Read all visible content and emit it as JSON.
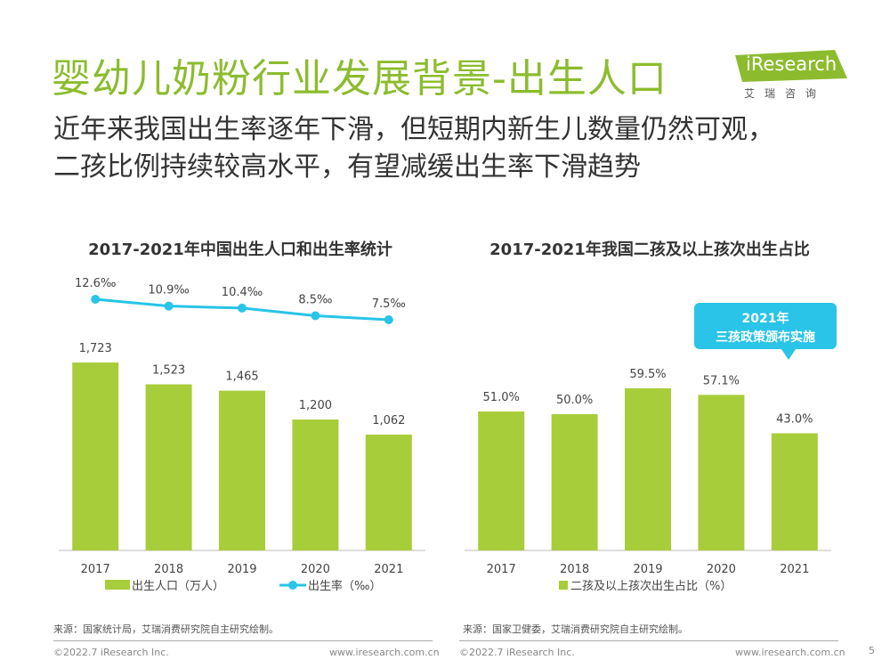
{
  "header": {
    "title": "婴幼儿奶粉行业发展背景-出生人口",
    "subtitle_line1": "近年来我国出生率逐年下滑，但短期内新生儿数量仍然可观，",
    "subtitle_line2": "二孩比例持续较高水平，有望减缓出生率下滑趋势"
  },
  "logo": {
    "text": "iResearch",
    "cn": "艾瑞咨询",
    "accent": "#8cbc2e"
  },
  "colors": {
    "bar": "#a8cd3a",
    "line": "#29c4e8",
    "title_green": "#8cbc2e",
    "callout": "#29c4e8"
  },
  "chart_data": [
    {
      "type": "bar+line",
      "title": "2017-2021年中国出生人口和出生率统计",
      "categories": [
        "2017",
        "2018",
        "2019",
        "2020",
        "2021"
      ],
      "series": [
        {
          "name": "出生人口（万人）",
          "kind": "bar",
          "values": [
            1723,
            1523,
            1465,
            1200,
            1062
          ],
          "labels": [
            "1,723",
            "1,523",
            "1,465",
            "1,200",
            "1,062"
          ]
        },
        {
          "name": "出生率（‰）",
          "kind": "line",
          "values": [
            12.6,
            10.9,
            10.4,
            8.5,
            7.5
          ],
          "labels": [
            "12.6‰",
            "10.9‰",
            "10.4‰",
            "8.5‰",
            "7.5‰"
          ]
        }
      ],
      "bar_ylim": [
        0,
        2000
      ],
      "line_ylim": [
        0,
        14
      ]
    },
    {
      "type": "bar",
      "title": "2017-2021年我国二孩及以上孩次出生占比",
      "categories": [
        "2017",
        "2018",
        "2019",
        "2020",
        "2021"
      ],
      "series": [
        {
          "name": "二孩及以上孩次出生占比（%）",
          "kind": "bar",
          "values": [
            51.0,
            50.0,
            59.5,
            57.1,
            43.0
          ],
          "labels": [
            "51.0%",
            "50.0%",
            "59.5%",
            "57.1%",
            "43.0%"
          ]
        }
      ],
      "ylim": [
        0,
        75
      ],
      "annotation": {
        "line1": "2021年",
        "line2": "三孩政策颁布实施"
      }
    }
  ],
  "footer": {
    "source_left": "来源：国家统计局，艾瑞消费研究院自主研究绘制。",
    "source_right": "来源：国家卫健委，艾瑞消费研究院自主研究绘制。",
    "copyright": "©2022.7 iResearch Inc.",
    "website": "www.iresearch.com.cn",
    "page_number": "5"
  }
}
